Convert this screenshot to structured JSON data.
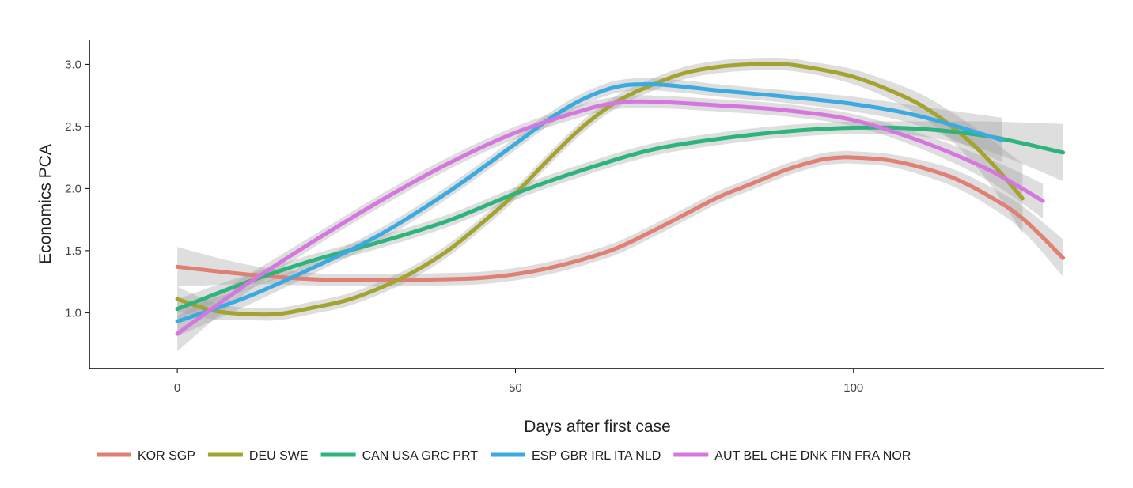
{
  "chart_data": {
    "type": "line",
    "title": "",
    "xlabel": "Days after first case",
    "ylabel": "Economics PCA",
    "xlim": [
      -13,
      137
    ],
    "ylim": [
      0.55,
      3.2
    ],
    "x_ticks": [
      0,
      50,
      100
    ],
    "y_ticks": [
      1.0,
      1.5,
      2.0,
      2.5,
      3.0
    ],
    "x_tick_labels": [
      "0",
      "50",
      "100"
    ],
    "y_tick_labels": [
      "1.0",
      "1.5",
      "2.0",
      "2.5",
      "3.0"
    ],
    "grid": false,
    "legend_position": "bottom",
    "confidence_band": true,
    "series": [
      {
        "name": "KOR SGP",
        "color": "#E07F74",
        "points": [
          [
            0,
            1.37
          ],
          [
            10,
            1.31
          ],
          [
            20,
            1.27
          ],
          [
            30,
            1.26
          ],
          [
            40,
            1.27
          ],
          [
            45,
            1.28
          ],
          [
            50,
            1.31
          ],
          [
            55,
            1.36
          ],
          [
            60,
            1.43
          ],
          [
            65,
            1.52
          ],
          [
            70,
            1.65
          ],
          [
            75,
            1.79
          ],
          [
            80,
            1.93
          ],
          [
            85,
            2.04
          ],
          [
            90,
            2.15
          ],
          [
            95,
            2.23
          ],
          [
            98,
            2.25
          ],
          [
            100,
            2.25
          ],
          [
            105,
            2.23
          ],
          [
            110,
            2.17
          ],
          [
            115,
            2.08
          ],
          [
            120,
            1.94
          ],
          [
            125,
            1.76
          ],
          [
            131,
            1.44
          ]
        ],
        "band": [
          0.16,
          0.08,
          0.05,
          0.05,
          0.05,
          0.05,
          0.05,
          0.05,
          0.05,
          0.05,
          0.05,
          0.05,
          0.05,
          0.05,
          0.05,
          0.05,
          0.05,
          0.05,
          0.05,
          0.06,
          0.07,
          0.08,
          0.1,
          0.15
        ]
      },
      {
        "name": "DEU SWE",
        "color": "#A3A330",
        "points": [
          [
            0,
            1.11
          ],
          [
            5,
            1.02
          ],
          [
            10,
            0.99
          ],
          [
            15,
            0.99
          ],
          [
            20,
            1.04
          ],
          [
            25,
            1.1
          ],
          [
            30,
            1.2
          ],
          [
            35,
            1.33
          ],
          [
            40,
            1.5
          ],
          [
            45,
            1.72
          ],
          [
            50,
            1.96
          ],
          [
            55,
            2.24
          ],
          [
            60,
            2.5
          ],
          [
            65,
            2.7
          ],
          [
            70,
            2.83
          ],
          [
            75,
            2.93
          ],
          [
            80,
            2.98
          ],
          [
            85,
            3.0
          ],
          [
            90,
            3.0
          ],
          [
            95,
            2.96
          ],
          [
            100,
            2.9
          ],
          [
            105,
            2.8
          ],
          [
            110,
            2.67
          ],
          [
            115,
            2.48
          ],
          [
            120,
            2.23
          ],
          [
            125,
            1.92
          ]
        ],
        "band": [
          0.1,
          0.07,
          0.05,
          0.05,
          0.05,
          0.05,
          0.05,
          0.05,
          0.05,
          0.05,
          0.05,
          0.05,
          0.05,
          0.05,
          0.05,
          0.05,
          0.05,
          0.05,
          0.05,
          0.05,
          0.06,
          0.07,
          0.09,
          0.12,
          0.18,
          0.28
        ]
      },
      {
        "name": "CAN USA GRC PRT",
        "color": "#2DB37C",
        "points": [
          [
            0,
            1.03
          ],
          [
            10,
            1.24
          ],
          [
            20,
            1.42
          ],
          [
            30,
            1.57
          ],
          [
            40,
            1.74
          ],
          [
            50,
            1.96
          ],
          [
            60,
            2.15
          ],
          [
            70,
            2.31
          ],
          [
            80,
            2.4
          ],
          [
            90,
            2.46
          ],
          [
            100,
            2.49
          ],
          [
            110,
            2.48
          ],
          [
            120,
            2.42
          ],
          [
            131,
            2.29
          ]
        ],
        "band": [
          0.08,
          0.06,
          0.05,
          0.05,
          0.05,
          0.05,
          0.05,
          0.05,
          0.05,
          0.05,
          0.05,
          0.06,
          0.12,
          0.23
        ]
      },
      {
        "name": "ESP GBR IRL ITA NLD",
        "color": "#3AAAE0",
        "points": [
          [
            0,
            0.93
          ],
          [
            10,
            1.12
          ],
          [
            20,
            1.36
          ],
          [
            30,
            1.63
          ],
          [
            40,
            1.97
          ],
          [
            50,
            2.36
          ],
          [
            55,
            2.56
          ],
          [
            60,
            2.72
          ],
          [
            65,
            2.82
          ],
          [
            70,
            2.84
          ],
          [
            75,
            2.82
          ],
          [
            80,
            2.79
          ],
          [
            90,
            2.74
          ],
          [
            100,
            2.68
          ],
          [
            110,
            2.58
          ],
          [
            122,
            2.39
          ]
        ],
        "band": [
          0.12,
          0.07,
          0.05,
          0.05,
          0.05,
          0.05,
          0.05,
          0.05,
          0.05,
          0.05,
          0.05,
          0.05,
          0.05,
          0.06,
          0.08,
          0.18
        ]
      },
      {
        "name": "AUT BEL CHE DNK FIN FRA NOR",
        "color": "#D677DF",
        "points": [
          [
            0,
            0.83
          ],
          [
            10,
            1.22
          ],
          [
            20,
            1.57
          ],
          [
            30,
            1.9
          ],
          [
            40,
            2.2
          ],
          [
            50,
            2.45
          ],
          [
            60,
            2.63
          ],
          [
            65,
            2.69
          ],
          [
            70,
            2.7
          ],
          [
            80,
            2.67
          ],
          [
            90,
            2.63
          ],
          [
            100,
            2.55
          ],
          [
            110,
            2.38
          ],
          [
            120,
            2.15
          ],
          [
            128,
            1.9
          ]
        ],
        "band": [
          0.14,
          0.07,
          0.05,
          0.05,
          0.05,
          0.05,
          0.05,
          0.05,
          0.05,
          0.05,
          0.05,
          0.05,
          0.06,
          0.09,
          0.14
        ]
      }
    ]
  }
}
